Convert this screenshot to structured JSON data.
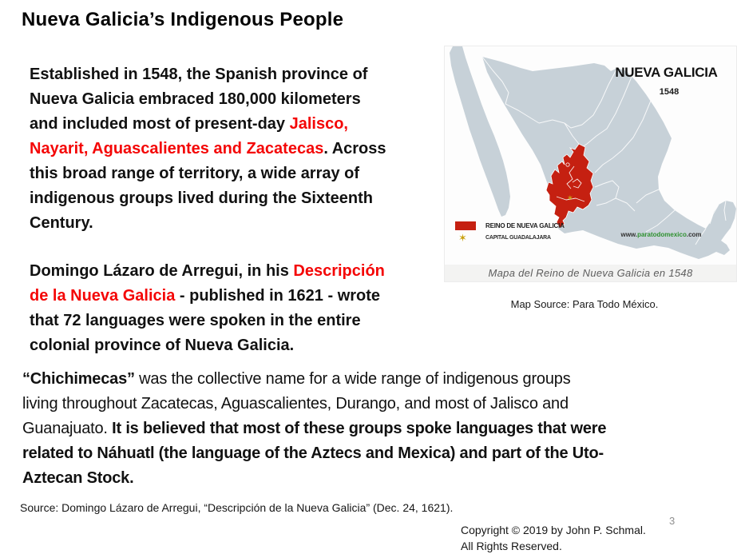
{
  "colors": {
    "accent_red": "#f40606",
    "map_land": "#c7d1d8",
    "map_region": "#c52011",
    "star_gold": "#c9a10e",
    "watermark_green": "#2f9130",
    "page_gray": "#8f8f8f",
    "caption_gray": "#5d5d5d"
  },
  "title": "Nueva Galicia’s Indigenous People",
  "paragraphs": {
    "p1": [
      {
        "t": "Established in 1548, the Spanish province of",
        "br": true
      },
      {
        "t": "Nueva Galicia embraced 180,000 kilometers",
        "br": true
      },
      {
        "t": "and included most of present-day "
      },
      {
        "t": "Jalisco,",
        "red": true,
        "br": true
      },
      {
        "t": "Nayarit, Aguascalientes and Zacatecas",
        "red": true
      },
      {
        "t": ". Across",
        "br": true
      },
      {
        "t": "this broad range of territory, a wide array of",
        "br": true
      },
      {
        "t": "indigenous groups lived during the Sixteenth",
        "br": true
      },
      {
        "t": "Century."
      }
    ],
    "p2": [
      {
        "t": "Domingo Lázaro de Arregui, in his "
      },
      {
        "t": "Descripción",
        "red": true,
        "br": true
      },
      {
        "t": "de la Nueva Galicia",
        "red": true
      },
      {
        "t": " - published in 1621 - wrote",
        "br": true
      },
      {
        "t": "that 72 languages were spoken in the entire",
        "br": true
      },
      {
        "t": "colonial province of Nueva Galicia."
      }
    ],
    "p3": [
      {
        "t": "“Chichimecas”",
        "bold": true
      },
      {
        "t": " was the collective name for a wide range of indigenous groups",
        "br": true
      },
      {
        "t": "living throughout Zacatecas, Aguascalientes, Durango, and most of Jalisco and",
        "br": true
      },
      {
        "t": "Guanajuato.  "
      },
      {
        "t": "It is believed that most of these groups spoke languages that were",
        "bold": true,
        "br": true
      },
      {
        "t": "related to Náhuatl (the language of the Aztecs and Mexica) and part of the Uto-",
        "bold": true,
        "br": true
      },
      {
        "t": "Aztecan Stock.",
        "bold": true
      }
    ]
  },
  "map": {
    "title": "NUEVA GALICIA",
    "year": "1548",
    "star_glyph": "✶",
    "legend": [
      {
        "label": "REINO DE NUEVA GALICIA"
      },
      {
        "label": "CAPITAL GUADALAJARA"
      }
    ],
    "watermark": {
      "www": "www.",
      "domain": "paratodomexico",
      "com": ".com"
    },
    "caption": "Mapa del Reino de Nueva Galicia en 1548",
    "source_note": "Map Source: Para Todo México."
  },
  "footer": {
    "source": "Source: Domingo Lázaro de Arregui, “Descripción de la Nueva Galicia” (Dec. 24, 1621).",
    "copyright1": "Copyright © 2019 by John P. Schmal.",
    "copyright2": "All Rights Reserved.",
    "page_number": "3"
  }
}
